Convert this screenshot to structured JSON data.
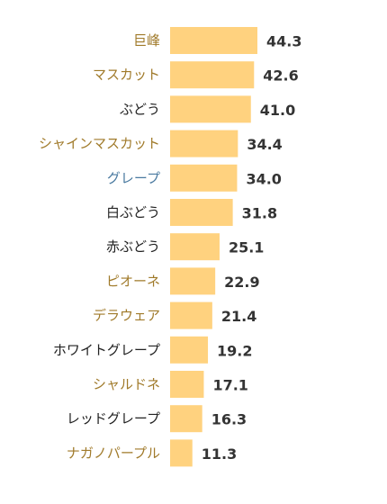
{
  "chart_data": {
    "type": "bar",
    "orientation": "horizontal",
    "title": "",
    "xlabel": "",
    "ylabel": "",
    "grid": false,
    "legend": "none",
    "xlim": [
      0,
      44.3
    ],
    "bar_color": "#ffd27f",
    "categories": [
      "巨峰",
      "マスカット",
      "ぶどう",
      "シャインマスカット",
      "グレープ",
      "白ぶどう",
      "赤ぶどう",
      "ピオーネ",
      "デラウェア",
      "ホワイトグレープ",
      "シャルドネ",
      "レッドグレープ",
      "ナガノパープル"
    ],
    "label_colors": [
      "#a07a2a",
      "#a07a2a",
      "#222222",
      "#a07a2a",
      "#4a7aa0",
      "#222222",
      "#222222",
      "#a07a2a",
      "#a07a2a",
      "#222222",
      "#a07a2a",
      "#222222",
      "#a07a2a"
    ],
    "values": [
      44.3,
      42.6,
      41.0,
      34.4,
      34.0,
      31.8,
      25.1,
      22.9,
      21.4,
      19.2,
      17.1,
      16.3,
      11.3
    ],
    "value_labels": [
      "44.3",
      "42.6",
      "41.0",
      "34.4",
      "34.0",
      "31.8",
      "25.1",
      "22.9",
      "21.4",
      "19.2",
      "17.1",
      "16.3",
      "11.3"
    ]
  }
}
